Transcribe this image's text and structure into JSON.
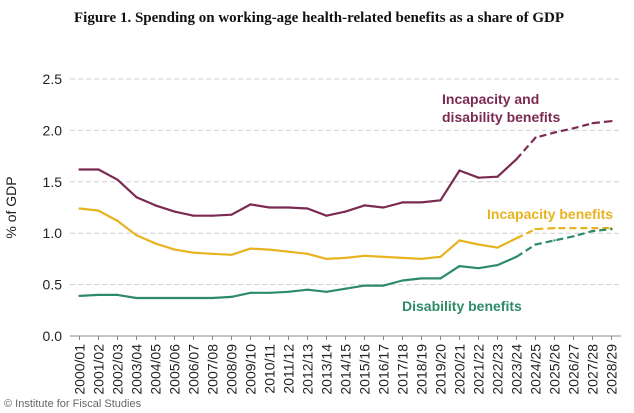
{
  "title": "Figure 1. Spending on working-age health-related benefits as a share of GDP",
  "credit": "© Institute for Fiscal Studies",
  "chart_data": {
    "type": "line",
    "title": "Figure 1. Spending on working-age health-related benefits as a share of GDP",
    "xlabel": "",
    "ylabel": "% of GDP",
    "ylim": [
      0,
      2.5
    ],
    "yticks": [
      "0.0",
      "0.5",
      "1.0",
      "1.5",
      "2.0",
      "2.5"
    ],
    "grid": "horizontal",
    "legend": "inline labels",
    "projection_from": "2023/24",
    "x": [
      "2000/01",
      "2001/02",
      "2002/03",
      "2003/04",
      "2004/05",
      "2005/06",
      "2006/07",
      "2007/08",
      "2008/09",
      "2009/10",
      "2010/11",
      "2011/12",
      "2012/13",
      "2013/14",
      "2014/15",
      "2015/16",
      "2016/17",
      "2017/18",
      "2018/19",
      "2019/20",
      "2020/21",
      "2021/22",
      "2022/23",
      "2023/24",
      "2024/25",
      "2025/26",
      "2026/27",
      "2027/28",
      "2028/29"
    ],
    "series": [
      {
        "name": "Incapacity and disability benefits",
        "label_lines": [
          "Incapacity and",
          "disability benefits"
        ],
        "color": "#7b2a52",
        "values": [
          1.62,
          1.62,
          1.52,
          1.35,
          1.27,
          1.21,
          1.17,
          1.17,
          1.18,
          1.28,
          1.25,
          1.25,
          1.24,
          1.17,
          1.21,
          1.27,
          1.25,
          1.3,
          1.3,
          1.32,
          1.61,
          1.54,
          1.55,
          1.72,
          1.93,
          1.98,
          2.02,
          2.07,
          2.09
        ]
      },
      {
        "name": "Incapacity benefits",
        "label_lines": [
          "Incapacity benefits"
        ],
        "color": "#e8b321",
        "values": [
          1.24,
          1.22,
          1.12,
          0.98,
          0.9,
          0.84,
          0.81,
          0.8,
          0.79,
          0.85,
          0.84,
          0.82,
          0.8,
          0.75,
          0.76,
          0.78,
          0.77,
          0.76,
          0.75,
          0.77,
          0.93,
          0.89,
          0.86,
          0.95,
          1.04,
          1.05,
          1.05,
          1.05,
          1.05
        ]
      },
      {
        "name": "Disability benefits",
        "label_lines": [
          "Disability benefits"
        ],
        "color": "#2e8b68",
        "values": [
          0.39,
          0.4,
          0.4,
          0.37,
          0.37,
          0.37,
          0.37,
          0.37,
          0.38,
          0.42,
          0.42,
          0.43,
          0.45,
          0.43,
          0.46,
          0.49,
          0.49,
          0.54,
          0.56,
          0.56,
          0.68,
          0.66,
          0.69,
          0.77,
          0.89,
          0.93,
          0.97,
          1.02,
          1.04
        ]
      }
    ]
  }
}
